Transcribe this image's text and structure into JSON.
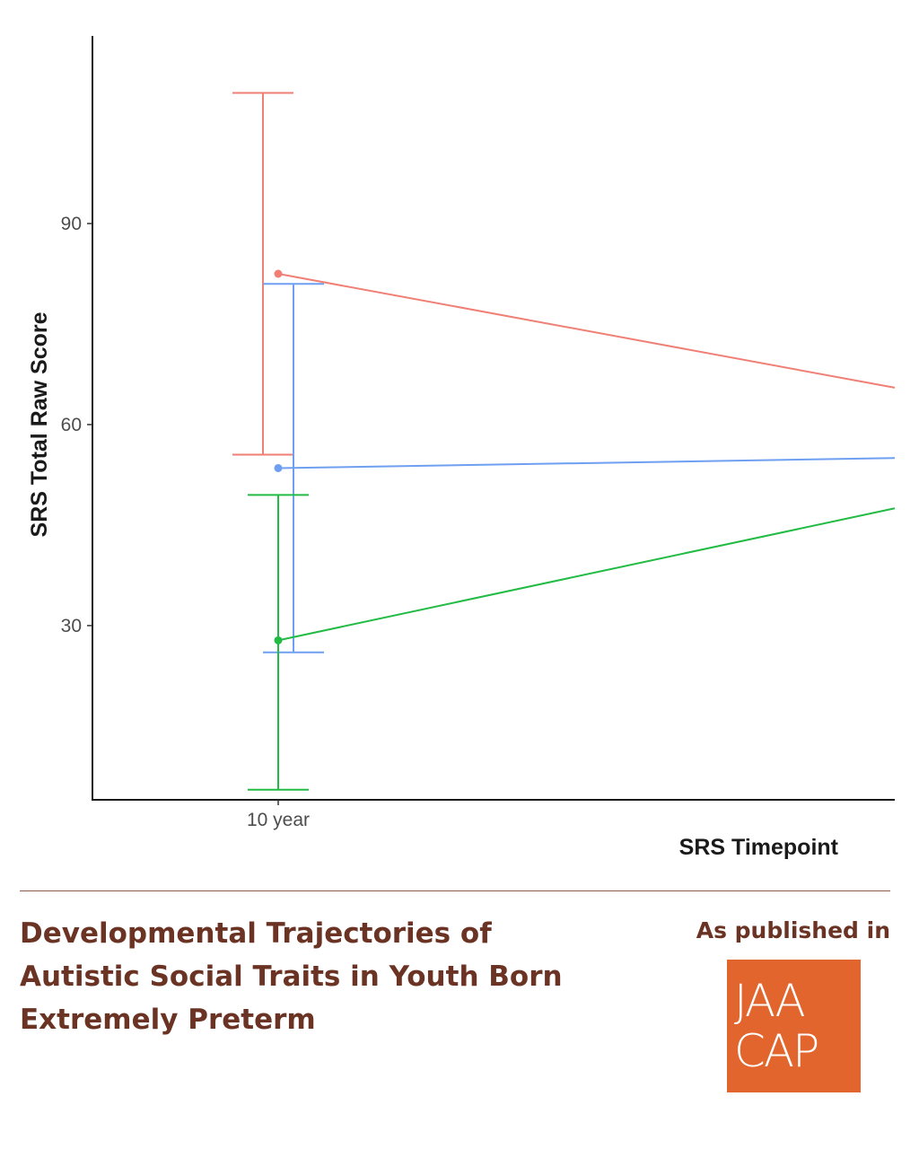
{
  "chart_data": {
    "type": "line",
    "title": "",
    "xlabel": "SRS Timepoint",
    "ylabel": "SRS Total Raw Score",
    "categories": [
      "10 year"
    ],
    "x_visible_ticks": [
      "10 year"
    ],
    "ylim": [
      4,
      118
    ],
    "yticks": [
      30,
      60,
      90
    ],
    "grid": false,
    "legend": "none",
    "series": [
      {
        "color": "#f07f75",
        "mean_10yr": 82.5,
        "ci": [
          55.5,
          109.5
        ],
        "trend_end": 65.5
      },
      {
        "color": "#6e9ff0",
        "mean_10yr": 53.5,
        "ci": [
          26,
          81
        ],
        "trend_end": 55
      },
      {
        "color": "#22bb44",
        "mean_10yr": 27.8,
        "ci": [
          5.5,
          49.5
        ],
        "trend_end": 47.5
      }
    ]
  },
  "caption": {
    "title": "Developmental Trajectories of\nAutistic Social Traits in Youth Born\nExtremely Preterm",
    "published_label": "As published in",
    "logo_line1": "JAA",
    "logo_line2": "CAP",
    "logo_color": "#e2652d"
  }
}
